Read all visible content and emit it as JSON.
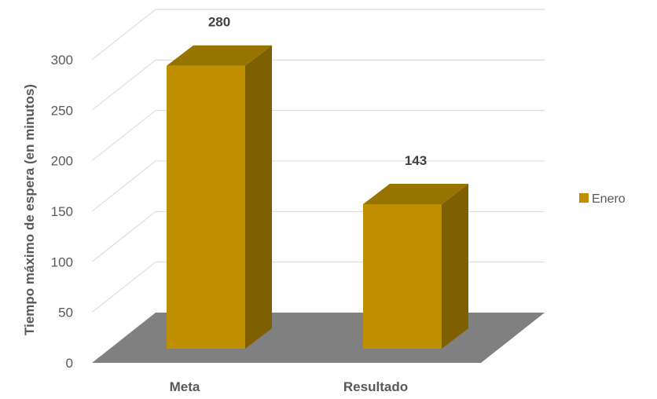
{
  "chart_data": {
    "type": "bar",
    "categories": [
      "Meta",
      "Resultado"
    ],
    "series": [
      {
        "name": "Enero",
        "values": [
          280,
          143
        ]
      }
    ],
    "data_labels": [
      "280",
      "143"
    ],
    "ylabel": "Tiempo máximo de espera (en minutos)",
    "xlabel": "",
    "ylim": [
      0,
      300
    ],
    "yticks": [
      "0",
      "50",
      "100",
      "150",
      "200",
      "250",
      "300"
    ],
    "grid": true,
    "legend": {
      "position": "right",
      "entries": [
        "Enero"
      ]
    },
    "style": "3d-column",
    "colors": {
      "bar_front": "#BF8F00",
      "bar_side": "#7F6000",
      "bar_top": "#977300",
      "floor": "#808080",
      "grid": "#D9D9D9",
      "text": "#595959",
      "label_text": "#404040"
    }
  }
}
